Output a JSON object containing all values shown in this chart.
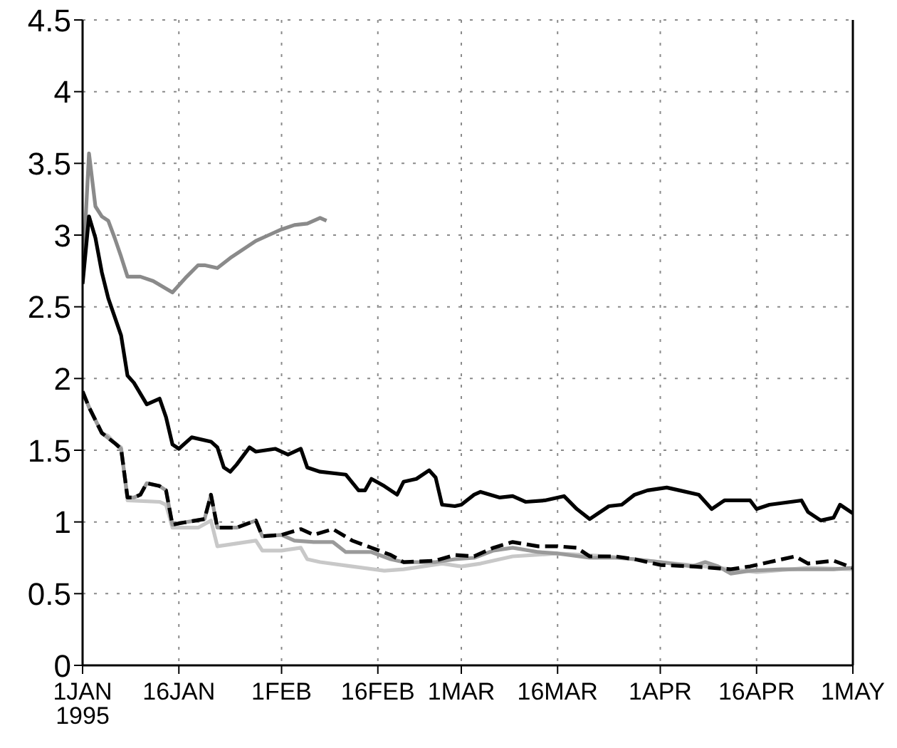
{
  "chart_data": {
    "type": "line",
    "xlim": [
      "1995-01-01",
      "1995-05-01"
    ],
    "xticks": [
      {
        "value": "1995-01-01",
        "label": "1JAN\n1995"
      },
      {
        "value": "1995-01-16",
        "label": "16JAN"
      },
      {
        "value": "1995-02-01",
        "label": "1FEB"
      },
      {
        "value": "1995-02-16",
        "label": "16FEB"
      },
      {
        "value": "1995-03-01",
        "label": "1MAR"
      },
      {
        "value": "1995-03-16",
        "label": "16MAR"
      },
      {
        "value": "1995-04-01",
        "label": "1APR"
      },
      {
        "value": "1995-04-16",
        "label": "16APR"
      },
      {
        "value": "1995-05-01",
        "label": "1MAY"
      }
    ],
    "ylim": [
      0,
      4.5
    ],
    "yticks": [
      0,
      0.5,
      1,
      1.5,
      2,
      2.5,
      3,
      3.5,
      4,
      4.5
    ],
    "grid": true,
    "series": [
      {
        "color": "#8a8a8a",
        "x": [
          "1995-01-01",
          "1995-01-02",
          "1995-01-03",
          "1995-01-04",
          "1995-01-05",
          "1995-01-06",
          "1995-01-07",
          "1995-01-08",
          "1995-01-10",
          "1995-01-12",
          "1995-01-15",
          "1995-01-17",
          "1995-01-19",
          "1995-01-20",
          "1995-01-22",
          "1995-01-24",
          "1995-01-26",
          "1995-01-28",
          "1995-01-30",
          "1995-02-01",
          "1995-02-03",
          "1995-02-05",
          "1995-02-07",
          "1995-02-08"
        ],
        "values": [
          2.7,
          3.57,
          3.2,
          3.13,
          3.1,
          2.98,
          2.85,
          2.71,
          2.71,
          2.68,
          2.6,
          2.7,
          2.79,
          2.79,
          2.77,
          2.84,
          2.9,
          2.96,
          3.0,
          3.04,
          3.07,
          3.08,
          3.12,
          3.1
        ]
      },
      {
        "color": "#000000",
        "x": [
          "1995-01-01",
          "1995-01-02",
          "1995-01-03",
          "1995-01-04",
          "1995-01-05",
          "1995-01-07",
          "1995-01-08",
          "1995-01-09",
          "1995-01-11",
          "1995-01-13",
          "1995-01-14",
          "1995-01-15",
          "1995-01-16",
          "1995-01-18",
          "1995-01-21",
          "1995-01-22",
          "1995-01-23",
          "1995-01-24",
          "1995-01-25",
          "1995-01-27",
          "1995-01-28",
          "1995-01-31",
          "1995-02-02",
          "1995-02-04",
          "1995-02-05",
          "1995-02-07",
          "1995-02-11",
          "1995-02-13",
          "1995-02-14",
          "1995-02-15",
          "1995-02-17",
          "1995-02-19",
          "1995-02-20",
          "1995-02-22",
          "1995-02-24",
          "1995-02-25",
          "1995-02-26",
          "1995-02-28",
          "1995-03-01",
          "1995-03-03",
          "1995-03-04",
          "1995-03-07",
          "1995-03-09",
          "1995-03-11",
          "1995-03-14",
          "1995-03-17",
          "1995-03-19",
          "1995-03-21",
          "1995-03-24",
          "1995-03-26",
          "1995-03-28",
          "1995-03-30",
          "1995-04-02",
          "1995-04-04",
          "1995-04-07",
          "1995-04-09",
          "1995-04-11",
          "1995-04-15",
          "1995-04-16",
          "1995-04-18",
          "1995-04-23",
          "1995-04-24",
          "1995-04-26",
          "1995-04-28",
          "1995-04-29",
          "1995-05-01"
        ],
        "values": [
          2.66,
          3.13,
          2.98,
          2.74,
          2.56,
          2.3,
          2.02,
          1.97,
          1.82,
          1.86,
          1.73,
          1.54,
          1.51,
          1.59,
          1.56,
          1.52,
          1.38,
          1.35,
          1.4,
          1.52,
          1.49,
          1.51,
          1.47,
          1.51,
          1.38,
          1.35,
          1.33,
          1.22,
          1.22,
          1.3,
          1.25,
          1.19,
          1.28,
          1.3,
          1.36,
          1.31,
          1.12,
          1.11,
          1.12,
          1.19,
          1.21,
          1.17,
          1.18,
          1.14,
          1.15,
          1.18,
          1.09,
          1.02,
          1.11,
          1.12,
          1.19,
          1.22,
          1.24,
          1.22,
          1.19,
          1.09,
          1.15,
          1.15,
          1.09,
          1.12,
          1.15,
          1.07,
          1.01,
          1.03,
          1.12,
          1.06
        ]
      },
      {
        "color": "#c8c8c8",
        "x": [
          "1995-01-01",
          "1995-01-02",
          "1995-01-04",
          "1995-01-05",
          "1995-01-06",
          "1995-01-07",
          "1995-01-08",
          "1995-01-13",
          "1995-01-14",
          "1995-01-15",
          "1995-01-19",
          "1995-01-21",
          "1995-01-22",
          "1995-01-25",
          "1995-01-28",
          "1995-01-29",
          "1995-02-01",
          "1995-02-04",
          "1995-02-05",
          "1995-02-07",
          "1995-02-12",
          "1995-02-17",
          "1995-02-20",
          "1995-02-26",
          "1995-03-01",
          "1995-03-04",
          "1995-03-09",
          "1995-03-16",
          "1995-03-24",
          "1995-04-01",
          "1995-04-08",
          "1995-04-16",
          "1995-04-24",
          "1995-05-01"
        ],
        "values": [
          1.91,
          1.8,
          1.62,
          1.6,
          1.55,
          1.52,
          1.15,
          1.14,
          1.12,
          0.96,
          0.96,
          1.01,
          0.83,
          0.85,
          0.87,
          0.8,
          0.8,
          0.82,
          0.74,
          0.72,
          0.69,
          0.66,
          0.67,
          0.71,
          0.69,
          0.71,
          0.76,
          0.78,
          0.76,
          0.72,
          0.69,
          0.65,
          0.68,
          0.67
        ]
      },
      {
        "color": "#9a9a9a",
        "x": [
          "1995-01-01",
          "1995-01-02",
          "1995-01-04",
          "1995-01-06",
          "1995-01-07",
          "1995-01-08",
          "1995-01-09",
          "1995-01-10",
          "1995-01-11",
          "1995-01-13",
          "1995-01-14",
          "1995-01-15",
          "1995-01-16",
          "1995-01-20",
          "1995-01-21",
          "1995-01-22",
          "1995-01-25",
          "1995-01-28",
          "1995-01-29",
          "1995-02-01",
          "1995-02-03",
          "1995-02-06",
          "1995-02-09",
          "1995-02-11",
          "1995-02-15",
          "1995-02-18",
          "1995-02-20",
          "1995-02-25",
          "1995-02-28",
          "1995-03-03",
          "1995-03-06",
          "1995-03-09",
          "1995-03-13",
          "1995-03-16",
          "1995-03-21",
          "1995-03-25",
          "1995-03-28",
          "1995-04-01",
          "1995-04-06",
          "1995-04-08",
          "1995-04-10",
          "1995-04-12",
          "1995-04-15",
          "1995-04-20",
          "1995-04-28",
          "1995-05-01"
        ],
        "values": [
          1.91,
          1.8,
          1.62,
          1.55,
          1.51,
          1.17,
          1.17,
          1.19,
          1.27,
          1.25,
          1.22,
          0.98,
          0.99,
          1.02,
          1.19,
          0.96,
          0.96,
          1.01,
          0.9,
          0.91,
          0.87,
          0.86,
          0.86,
          0.79,
          0.79,
          0.74,
          0.72,
          0.72,
          0.74,
          0.75,
          0.8,
          0.82,
          0.79,
          0.78,
          0.75,
          0.75,
          0.74,
          0.72,
          0.69,
          0.72,
          0.69,
          0.64,
          0.66,
          0.67,
          0.67,
          0.68
        ]
      },
      {
        "color": "#000000",
        "line_style": "dashed",
        "x": [
          "1995-01-01",
          "1995-01-02",
          "1995-01-04",
          "1995-01-06",
          "1995-01-07",
          "1995-01-08",
          "1995-01-09",
          "1995-01-10",
          "1995-01-11",
          "1995-01-13",
          "1995-01-14",
          "1995-01-15",
          "1995-01-16",
          "1995-01-20",
          "1995-01-21",
          "1995-01-22",
          "1995-01-25",
          "1995-01-28",
          "1995-01-29",
          "1995-02-01",
          "1995-02-04",
          "1995-02-06",
          "1995-02-09",
          "1995-02-12",
          "1995-02-15",
          "1995-02-18",
          "1995-02-20",
          "1995-02-25",
          "1995-02-28",
          "1995-03-03",
          "1995-03-06",
          "1995-03-09",
          "1995-03-13",
          "1995-03-16",
          "1995-03-19",
          "1995-03-21",
          "1995-03-25",
          "1995-03-28",
          "1995-04-01",
          "1995-04-06",
          "1995-04-12",
          "1995-04-15",
          "1995-04-18",
          "1995-04-22",
          "1995-04-24",
          "1995-04-28",
          "1995-05-01"
        ],
        "values": [
          1.91,
          1.8,
          1.62,
          1.55,
          1.51,
          1.17,
          1.17,
          1.19,
          1.27,
          1.25,
          1.22,
          0.98,
          0.99,
          1.02,
          1.19,
          0.96,
          0.96,
          1.01,
          0.9,
          0.91,
          0.95,
          0.91,
          0.95,
          0.87,
          0.82,
          0.77,
          0.72,
          0.73,
          0.77,
          0.76,
          0.82,
          0.86,
          0.83,
          0.83,
          0.82,
          0.76,
          0.76,
          0.74,
          0.7,
          0.69,
          0.67,
          0.69,
          0.72,
          0.76,
          0.71,
          0.73,
          0.68
        ]
      }
    ]
  }
}
